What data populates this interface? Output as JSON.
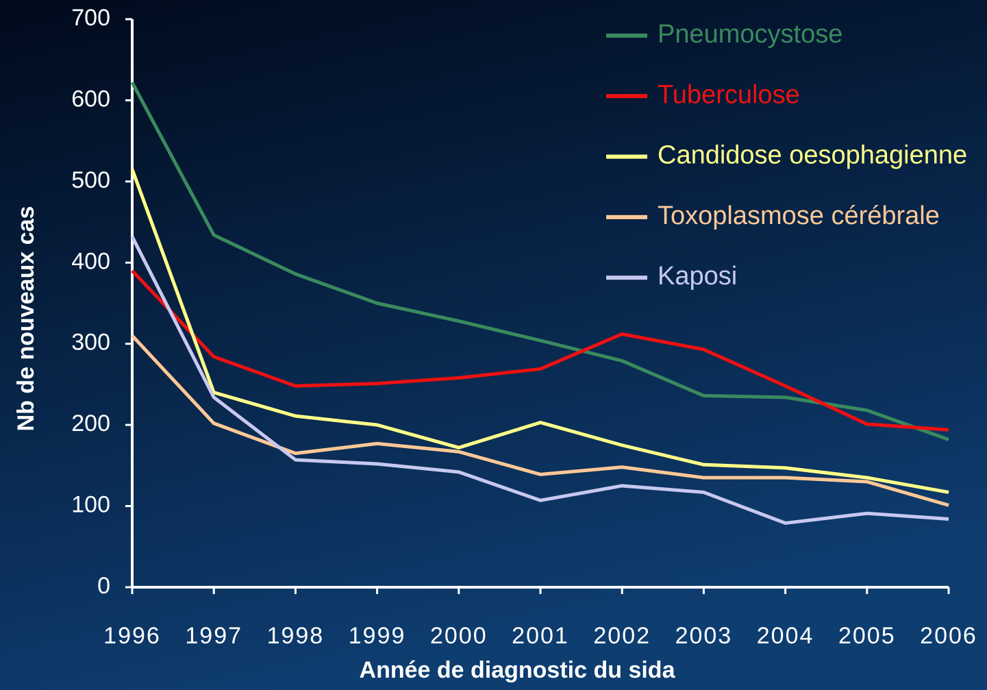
{
  "chart_data": {
    "type": "line",
    "x_label": "Année de diagnostic du sida",
    "y_label": "Nb de nouveaux cas",
    "categories": [
      "1996",
      "1997",
      "1998",
      "1999",
      "2000",
      "2001",
      "2002",
      "2003",
      "2004",
      "2005",
      "2006"
    ],
    "series": [
      {
        "name": "Pneumocystose",
        "color": "#3a8a5e",
        "values": [
          622,
          434,
          386,
          350,
          328,
          304,
          279,
          236,
          234,
          218,
          182
        ]
      },
      {
        "name": "Tuberculose",
        "color": "#ee1111",
        "values": [
          390,
          284,
          248,
          251,
          258,
          269,
          312,
          293,
          248,
          201,
          194
        ]
      },
      {
        "name": "Candidose oesophagienne",
        "color": "#ffff88",
        "values": [
          515,
          240,
          211,
          200,
          172,
          203,
          175,
          151,
          147,
          135,
          117
        ]
      },
      {
        "name": "Toxoplasmose cérébrale",
        "color": "#ffc896",
        "values": [
          310,
          202,
          165,
          177,
          167,
          139,
          148,
          135,
          135,
          130,
          101
        ]
      },
      {
        "name": "Kaposi",
        "color": "#c8c8f0",
        "values": [
          432,
          234,
          157,
          152,
          142,
          107,
          125,
          117,
          79,
          91,
          84
        ]
      }
    ],
    "ylim": [
      0,
      700
    ],
    "yticks": [
      0,
      100,
      200,
      300,
      400,
      500,
      600,
      700
    ],
    "legend": "top-right"
  }
}
